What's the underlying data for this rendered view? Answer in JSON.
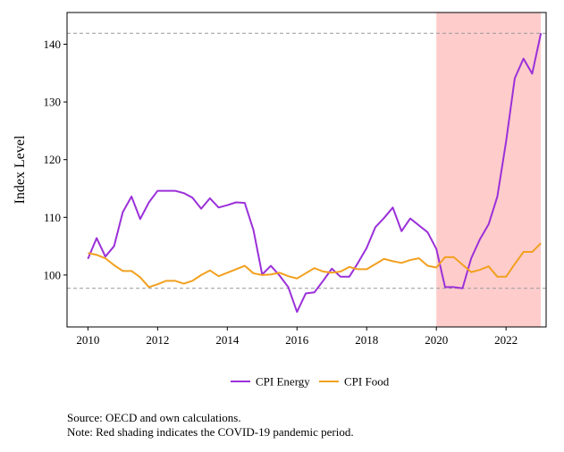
{
  "chart_data": {
    "type": "line",
    "ylabel": "Index Level",
    "xlabel": "",
    "xlim": [
      2009.4,
      2023.15
    ],
    "ylim": [
      91,
      145.5
    ],
    "x_ticks": [
      2010,
      2012,
      2014,
      2016,
      2018,
      2020,
      2022
    ],
    "y_ticks": [
      100,
      110,
      120,
      130,
      140
    ],
    "grid": false,
    "legend_position": "bottom",
    "reference_lines": [
      141.9,
      97.7
    ],
    "shaded_period": {
      "start": 2020,
      "end": 2023,
      "color": "#ffcccc"
    },
    "series": [
      {
        "name": "CPI Energy",
        "color": "#9b30d9",
        "x": [
          2010.0,
          2010.25,
          2010.5,
          2010.75,
          2011.0,
          2011.25,
          2011.5,
          2011.75,
          2012.0,
          2012.25,
          2012.5,
          2012.75,
          2013.0,
          2013.25,
          2013.5,
          2013.75,
          2014.0,
          2014.25,
          2014.5,
          2014.75,
          2015.0,
          2015.25,
          2015.5,
          2015.75,
          2016.0,
          2016.25,
          2016.5,
          2016.75,
          2017.0,
          2017.25,
          2017.5,
          2017.75,
          2018.0,
          2018.25,
          2018.5,
          2018.75,
          2019.0,
          2019.25,
          2019.5,
          2019.75,
          2020.0,
          2020.25,
          2020.5,
          2020.75,
          2021.0,
          2021.25,
          2021.5,
          2021.75,
          2022.0,
          2022.25,
          2022.5,
          2022.75,
          2023.0
        ],
        "values": [
          102.8,
          106.4,
          103.2,
          105.0,
          110.9,
          113.6,
          109.7,
          112.6,
          114.6,
          114.6,
          114.6,
          114.2,
          113.4,
          111.5,
          113.3,
          111.7,
          112.1,
          112.6,
          112.5,
          107.8,
          100.1,
          101.6,
          99.9,
          97.9,
          93.6,
          96.8,
          97.0,
          99.0,
          101.1,
          99.7,
          99.7,
          102.1,
          104.7,
          108.3,
          109.9,
          111.7,
          107.6,
          109.8,
          108.6,
          107.4,
          104.5,
          97.9,
          97.9,
          97.7,
          102.9,
          106.2,
          108.8,
          113.6,
          123.1,
          134.1,
          137.5,
          134.9,
          141.9
        ]
      },
      {
        "name": "CPI Food",
        "color": "#f2a01f",
        "x": [
          2010.0,
          2010.25,
          2010.5,
          2010.75,
          2011.0,
          2011.25,
          2011.5,
          2011.75,
          2012.0,
          2012.25,
          2012.5,
          2012.75,
          2013.0,
          2013.25,
          2013.5,
          2013.75,
          2014.0,
          2014.25,
          2014.5,
          2014.75,
          2015.0,
          2015.25,
          2015.5,
          2015.75,
          2016.0,
          2016.25,
          2016.5,
          2016.75,
          2017.0,
          2017.25,
          2017.5,
          2017.75,
          2018.0,
          2018.25,
          2018.5,
          2018.75,
          2019.0,
          2019.25,
          2019.5,
          2019.75,
          2020.0,
          2020.25,
          2020.5,
          2020.75,
          2021.0,
          2021.25,
          2021.5,
          2021.75,
          2022.0,
          2022.25,
          2022.5,
          2022.75,
          2023.0
        ],
        "values": [
          103.8,
          103.5,
          102.9,
          101.7,
          100.7,
          100.7,
          99.6,
          97.9,
          98.4,
          99.0,
          99.0,
          98.5,
          99.0,
          100.0,
          100.8,
          99.8,
          100.4,
          101.0,
          101.6,
          100.3,
          100.0,
          100.1,
          100.4,
          99.8,
          99.4,
          100.3,
          101.2,
          100.6,
          100.4,
          100.6,
          101.4,
          101.0,
          101.0,
          101.9,
          102.8,
          102.4,
          102.1,
          102.6,
          102.9,
          101.6,
          101.3,
          103.1,
          103.1,
          101.8,
          100.5,
          100.9,
          101.5,
          99.7,
          99.7,
          101.9,
          104.0,
          104.0,
          105.5
        ]
      }
    ]
  },
  "notes": {
    "source": "Source: OECD and own calculations.",
    "note": "Note: Red shading indicates the COVID-19 pandemic period."
  }
}
